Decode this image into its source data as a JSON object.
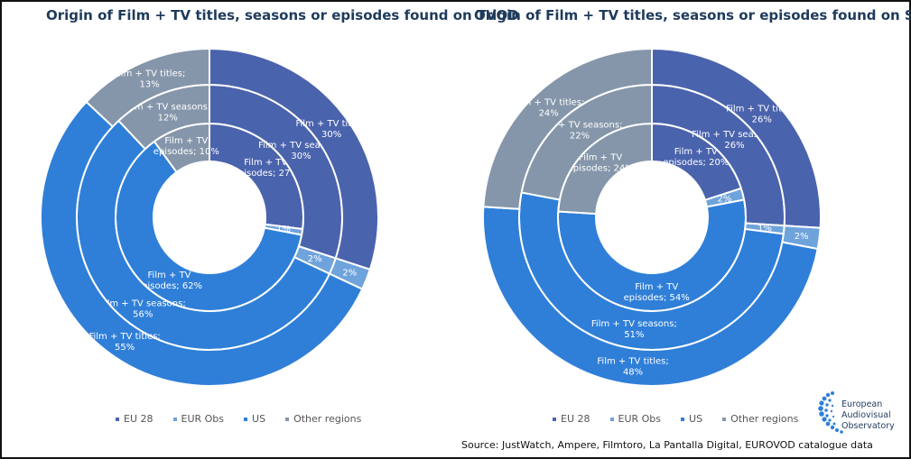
{
  "colors": {
    "EU 28": "#4a63ad",
    "EUR Obs": "#6fa3dc",
    "US": "#2f7fd8",
    "Other regions": "#8596aa"
  },
  "chart_data": [
    {
      "type": "donut",
      "title": "Origin of Film + TV titles, seasons or episodes found on TVOD",
      "legend_position": "bottom",
      "categories": [
        "EU 28",
        "EUR Obs",
        "US",
        "Other regions"
      ],
      "series": [
        {
          "name": "Film + TV episodes",
          "values": [
            27,
            1,
            62,
            10
          ],
          "labels": [
            "Film + TV episodes; 27%",
            "1%",
            "Film + TV episodes; 62%",
            "Film + TV episodes; 10%"
          ]
        },
        {
          "name": "Film + TV seasons",
          "values": [
            30,
            2,
            56,
            12
          ],
          "labels": [
            "Film + TV seasons; 30%",
            "2%",
            "Film + TV seasons; 56%",
            "Film + TV seasons; 12%"
          ]
        },
        {
          "name": "Film + TV titles",
          "values": [
            30,
            2,
            55,
            13
          ],
          "labels": [
            "Film + TV titles; 30%",
            "2%",
            "Film + TV titles; 55%",
            "Film + TV titles; 13%"
          ]
        }
      ]
    },
    {
      "type": "donut",
      "title": "Origin of Film + TV titles, seasons or episodes found on SVOD",
      "legend_position": "bottom",
      "categories": [
        "EU 28",
        "EUR Obs",
        "US",
        "Other regions"
      ],
      "series": [
        {
          "name": "Film + TV episodes",
          "values": [
            20,
            2,
            54,
            24
          ],
          "labels": [
            "Film + TV episodes; 20%",
            "2%",
            "Film + TV episodes; 54%",
            "Film + TV episodes; 24%"
          ]
        },
        {
          "name": "Film + TV seasons",
          "values": [
            26,
            1,
            51,
            22
          ],
          "labels": [
            "Film + TV seasons; 26%",
            "1%",
            "Film + TV seasons; 51%",
            "Film + TV seasons; 22%"
          ]
        },
        {
          "name": "Film + TV titles",
          "values": [
            26,
            2,
            48,
            24
          ],
          "labels": [
            "Film + TV titles; 26%",
            "2%",
            "Film + TV titles; 48%",
            "Film + TV titles; 24%"
          ]
        }
      ]
    }
  ],
  "legend": {
    "items": [
      "EU 28",
      "EUR Obs",
      "US",
      "Other regions"
    ]
  },
  "source": "Source: JustWatch, Ampere, Filmtoro, La Pantalla Digital, EUROVOD catalogue data",
  "logo": {
    "line1": "European",
    "line2": "Audiovisual",
    "line3": "Observatory"
  }
}
